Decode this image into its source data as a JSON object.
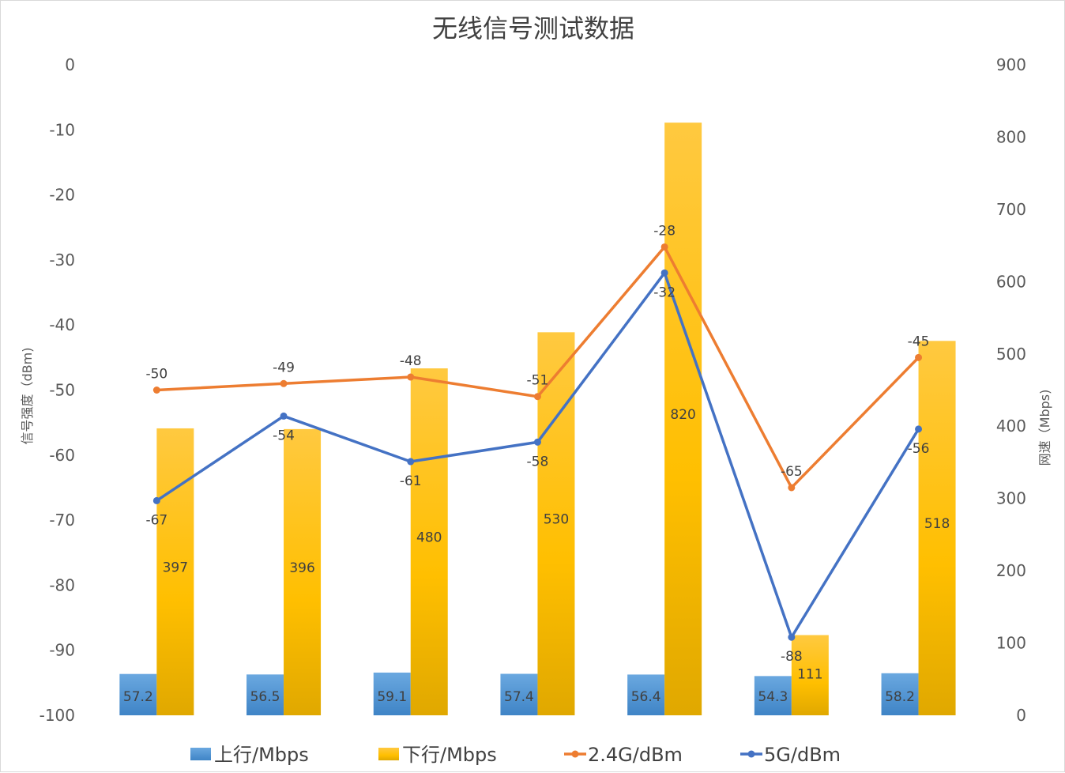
{
  "chart_data": {
    "type": "bar",
    "title": "无线信号测试数据",
    "categories": [
      "",
      "",
      "",
      "",
      "",
      "",
      ""
    ],
    "y_left": {
      "label": "信号强度（dBm)",
      "range": [
        -100,
        0
      ],
      "ticks": [
        0,
        -10,
        -20,
        -30,
        -40,
        -50,
        -60,
        -70,
        -80,
        -90,
        -100
      ]
    },
    "y_right": {
      "label": "网速（Mbps)",
      "range": [
        0,
        900
      ],
      "ticks": [
        900,
        800,
        700,
        600,
        500,
        400,
        300,
        200,
        100,
        0
      ]
    },
    "series": [
      {
        "name": "上行/Mbps",
        "type": "bar",
        "axis": "right",
        "color": "#5b9bd5",
        "values": [
          57.2,
          56.5,
          59.1,
          57.4,
          56.4,
          54.3,
          58.2
        ]
      },
      {
        "name": "下行/Mbps",
        "type": "bar",
        "axis": "right",
        "color": "#ffc000",
        "values": [
          397,
          396,
          480,
          530,
          820,
          111,
          518
        ]
      },
      {
        "name": "2.4G/dBm",
        "type": "line",
        "axis": "left",
        "color": "#ed7d31",
        "values": [
          -50,
          -49,
          -48,
          -51,
          -28,
          -65,
          -45
        ]
      },
      {
        "name": "5G/dBm",
        "type": "line",
        "axis": "left",
        "color": "#4472c4",
        "values": [
          -67,
          -54,
          -61,
          -58,
          -32,
          -88,
          -56
        ]
      }
    ],
    "grid": false,
    "legend_position": "bottom"
  }
}
